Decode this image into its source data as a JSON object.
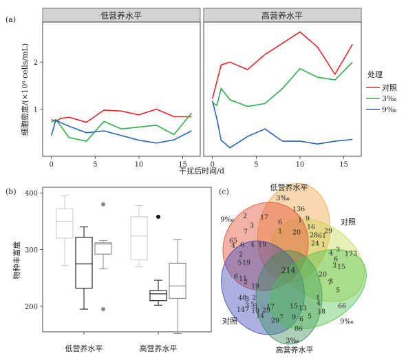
{
  "panel_labels": {
    "a": "(a)",
    "b": "(b)",
    "c": "(c)"
  },
  "chart_data": [
    {
      "type": "line",
      "facets": [
        "低营养水平",
        "高营养水平"
      ],
      "ylabel": "细胞密度/(×10⁶ cells/mL)",
      "xlabel": "干扰后时间/d",
      "xlim": [
        -1,
        17
      ],
      "ylim": [
        0,
        2.85
      ],
      "xticks": [
        0,
        5,
        10,
        15
      ],
      "yticks": [
        1,
        2
      ],
      "grid": false,
      "legend": {
        "title": "处理",
        "entries": [
          "对照",
          "3‰",
          "9‰"
        ],
        "placement": "right"
      },
      "colors": {
        "对照": "#e8262a",
        "3‰": "#2eae4a",
        "9‰": "#2366b4"
      },
      "panels": [
        {
          "facet": "低营养水平",
          "series": [
            {
              "name": "对照",
              "x": [
                0,
                0.5,
                1,
                2,
                4,
                6,
                8,
                10,
                12,
                14,
                16
              ],
              "y": [
                0.78,
                0.74,
                0.8,
                0.83,
                0.72,
                0.98,
                0.96,
                0.88,
                1.0,
                0.84,
                0.84
              ]
            },
            {
              "name": "3‰",
              "x": [
                0,
                0.5,
                1,
                2,
                4,
                6,
                8,
                10,
                12,
                14,
                16
              ],
              "y": [
                0.72,
                0.78,
                0.66,
                0.4,
                0.32,
                0.74,
                0.58,
                0.62,
                0.66,
                0.46,
                0.92
              ]
            },
            {
              "name": "9‰",
              "x": [
                0,
                0.5,
                1,
                2,
                4,
                6,
                8,
                10,
                12,
                14,
                16
              ],
              "y": [
                0.44,
                0.77,
                0.72,
                0.64,
                0.5,
                0.54,
                0.44,
                0.34,
                0.28,
                0.35,
                0.54
              ]
            }
          ]
        },
        {
          "facet": "高营养水平",
          "series": [
            {
              "name": "对照",
              "x": [
                0,
                1,
                2,
                4,
                6,
                8,
                10,
                12,
                14,
                16
              ],
              "y": [
                1.22,
                1.94,
                2.0,
                1.84,
                2.16,
                2.4,
                2.64,
                2.32,
                1.74,
                2.38
              ]
            },
            {
              "name": "3‰",
              "x": [
                0,
                0.5,
                1,
                2,
                4,
                6,
                8,
                10,
                12,
                14,
                16
              ],
              "y": [
                1.14,
                1.08,
                1.44,
                1.2,
                1.06,
                1.12,
                1.44,
                1.86,
                1.68,
                1.62,
                2.0
              ]
            },
            {
              "name": "9‰",
              "x": [
                0,
                0.5,
                1,
                2,
                4,
                6,
                8,
                10,
                12,
                14,
                16
              ],
              "y": [
                1.18,
                0.8,
                0.34,
                0.18,
                0.42,
                0.58,
                0.32,
                0.32,
                0.26,
                0.32,
                0.36
              ]
            }
          ]
        }
      ]
    },
    {
      "type": "box",
      "ylabel": "物种丰富度",
      "categories": [
        "低营养水平",
        "高营养水平"
      ],
      "ylim": [
        155,
        410
      ],
      "yticks": [
        200,
        300,
        400
      ],
      "groups": [
        {
          "category": "低营养水平",
          "boxes": [
            {
              "treatment": "对照",
              "color": "#cccccc",
              "min": 272,
              "q1": 320,
              "median": 350,
              "q3": 372,
              "max": 396,
              "outliers": []
            },
            {
              "treatment": "9‰",
              "color": "#111111",
              "min": 195,
              "q1": 232,
              "median": 275,
              "q3": 322,
              "max": 340,
              "outliers": []
            },
            {
              "treatment": "3‰",
              "color": "#888888",
              "min": 266,
              "q1": 292,
              "median": 310,
              "q3": 312,
              "max": 316,
              "outliers": [
                380,
                195
              ]
            }
          ]
        },
        {
          "category": "高营养水平",
          "boxes": [
            {
              "treatment": "对照",
              "color": "#cccccc",
              "min": 270,
              "q1": 282,
              "median": 324,
              "q3": 358,
              "max": 378,
              "outliers": []
            },
            {
              "treatment": "9‰",
              "color": "#111111",
              "min": 202,
              "q1": 210,
              "median": 222,
              "q3": 228,
              "max": 246,
              "outliers": [
                358
              ]
            },
            {
              "treatment": "3‰",
              "color": "#888888",
              "min": 152,
              "q1": 214,
              "median": 236,
              "q3": 276,
              "max": 318,
              "outliers": []
            }
          ]
        }
      ]
    },
    {
      "type": "venn",
      "sets": [
        {
          "name": "低营养水平 3‰",
          "color": "#f0a040"
        },
        {
          "name": "低营养水平 对照",
          "color": "#c8d850"
        },
        {
          "name": "低营养水平 9‰",
          "color": "#e04a2e"
        },
        {
          "name": "高营养水平 对照",
          "color": "#3a46b4"
        },
        {
          "name": "高营养水平 3‰",
          "color": "#3a8a5a"
        },
        {
          "name": "高营养水平 9‰",
          "color": "#50c050"
        }
      ],
      "outer_labels": {
        "top_title": "低营养水平",
        "top_3": "3‰",
        "right_ctrl": "对照",
        "right_9": "9‰",
        "left_9": "9‰",
        "left_ctrl": "对照",
        "bottom_3": "3‰",
        "bottom_title": "高营养水平"
      },
      "region_values": [
        "136",
        "173",
        "66",
        "147",
        "86",
        "65",
        "2",
        "17",
        "6",
        "1",
        "9",
        "16",
        "29",
        "3",
        "7",
        "1",
        "20",
        "28",
        "61",
        "4",
        "6",
        "4",
        "19",
        "1",
        "24",
        "3",
        "4",
        "6",
        "3",
        "15",
        "2",
        "19",
        "5",
        "11",
        "6",
        "2",
        "19",
        "20",
        "3",
        "5",
        "48",
        "3",
        "2",
        "3",
        "1",
        "5",
        "3",
        "14",
        "7",
        "10",
        "29",
        "17",
        "15",
        "13",
        "4",
        "18",
        "29",
        "9",
        "6",
        "5",
        "7",
        "214"
      ]
    }
  ]
}
